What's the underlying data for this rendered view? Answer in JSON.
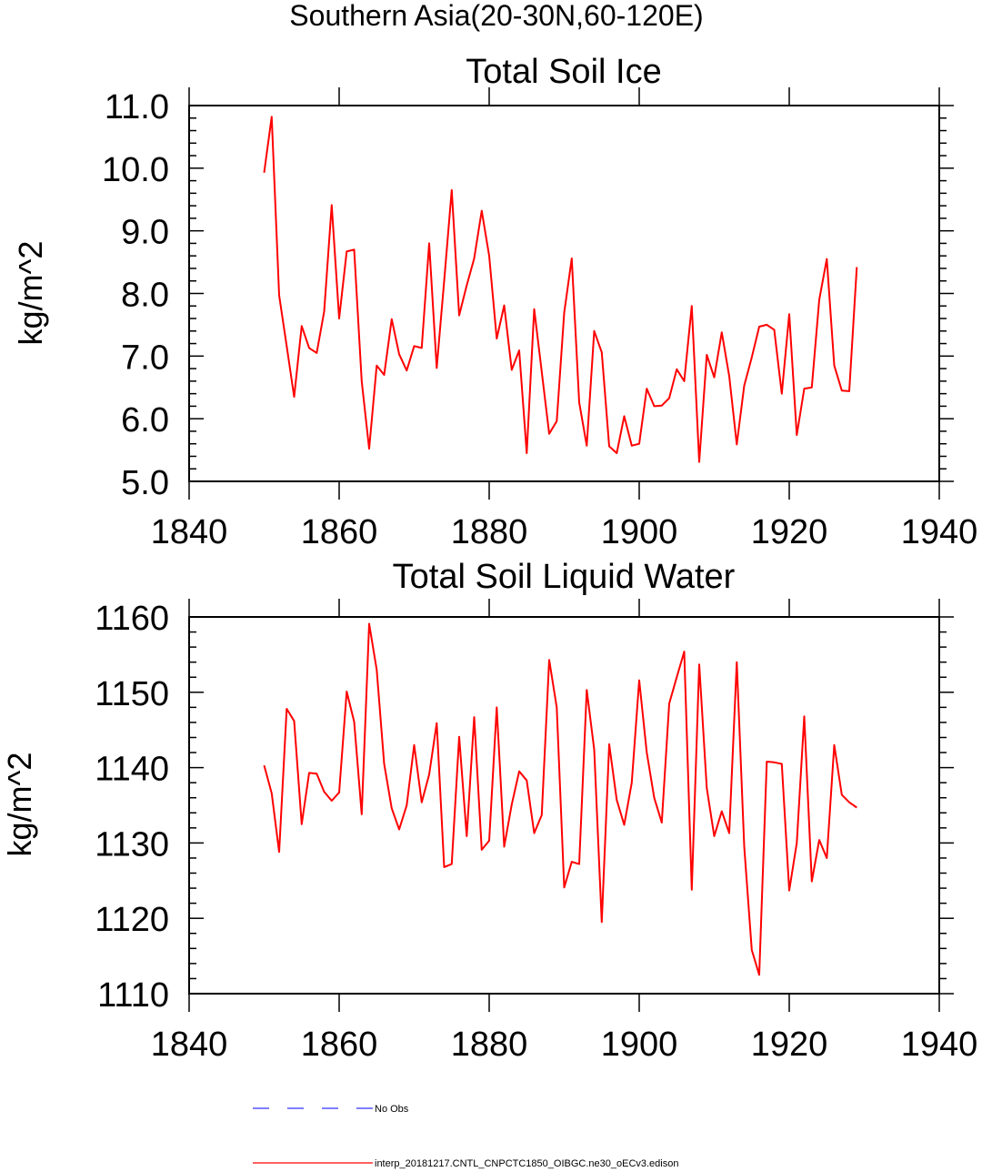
{
  "suptitle": "Southern Asia(20-30N,60-120E)",
  "chart_data": [
    {
      "type": "line",
      "title": "Total Soil Ice",
      "ylabel": "kg/m^2",
      "xlabel": "",
      "xlim": [
        1840,
        1940
      ],
      "ylim": [
        5.0,
        11.0
      ],
      "xticks": [
        "1840",
        "1860",
        "1880",
        "1900",
        "1920",
        "1940"
      ],
      "yticks": [
        "5.0",
        "6.0",
        "7.0",
        "8.0",
        "9.0",
        "10.0",
        "11.0"
      ],
      "series": [
        {
          "color": "#ff0000",
          "x": [
            1850,
            1851,
            1852,
            1853,
            1854,
            1855,
            1856,
            1857,
            1858,
            1859,
            1860,
            1861,
            1862,
            1863,
            1864,
            1865,
            1866,
            1867,
            1868,
            1869,
            1870,
            1871,
            1872,
            1873,
            1874,
            1875,
            1876,
            1877,
            1878,
            1879,
            1880,
            1881,
            1882,
            1883,
            1884,
            1885,
            1886,
            1887,
            1888,
            1889,
            1890,
            1891,
            1892,
            1893,
            1894,
            1895,
            1896,
            1897,
            1898,
            1899,
            1900,
            1901,
            1902,
            1903,
            1904,
            1905,
            1906,
            1907,
            1908,
            1909,
            1910,
            1911,
            1912,
            1913,
            1914,
            1915,
            1916,
            1917,
            1918,
            1919,
            1920,
            1921,
            1922,
            1923,
            1924,
            1925,
            1926,
            1927,
            1928,
            1929
          ],
          "y": [
            9.93,
            10.82,
            7.97,
            7.16,
            6.35,
            7.48,
            7.13,
            7.05,
            7.71,
            9.41,
            7.6,
            8.67,
            8.7,
            6.6,
            5.52,
            6.85,
            6.7,
            7.59,
            7.03,
            6.77,
            7.16,
            7.13,
            8.8,
            6.81,
            8.2,
            9.65,
            7.65,
            8.13,
            8.56,
            9.32,
            8.6,
            7.28,
            7.81,
            6.78,
            7.09,
            5.45,
            7.75,
            6.75,
            5.76,
            5.96,
            7.69,
            8.56,
            6.26,
            5.57,
            7.4,
            7.06,
            5.56,
            5.45,
            6.04,
            5.57,
            5.6,
            6.48,
            6.2,
            6.21,
            6.33,
            6.79,
            6.6,
            7.8,
            5.31,
            7.02,
            6.66,
            7.38,
            6.68,
            5.59,
            6.53,
            6.98,
            7.47,
            7.5,
            7.42,
            6.4,
            7.67,
            5.74,
            6.48,
            6.5,
            7.9,
            8.55,
            6.85,
            6.45,
            6.44,
            8.42
          ]
        }
      ]
    },
    {
      "type": "line",
      "title": "Total Soil Liquid Water",
      "ylabel": "kg/m^2",
      "xlabel": "",
      "xlim": [
        1840,
        1940
      ],
      "ylim": [
        1110,
        1160
      ],
      "xticks": [
        "1840",
        "1860",
        "1880",
        "1900",
        "1920",
        "1940"
      ],
      "yticks": [
        "1110",
        "1120",
        "1130",
        "1140",
        "1150",
        "1160"
      ],
      "series": [
        {
          "color": "#ff0000",
          "x": [
            1850,
            1851,
            1852,
            1853,
            1854,
            1855,
            1856,
            1857,
            1858,
            1859,
            1860,
            1861,
            1862,
            1863,
            1864,
            1865,
            1866,
            1867,
            1868,
            1869,
            1870,
            1871,
            1872,
            1873,
            1874,
            1875,
            1876,
            1877,
            1878,
            1879,
            1880,
            1881,
            1882,
            1883,
            1884,
            1885,
            1886,
            1887,
            1888,
            1889,
            1890,
            1891,
            1892,
            1893,
            1894,
            1895,
            1896,
            1897,
            1898,
            1899,
            1900,
            1901,
            1902,
            1903,
            1904,
            1905,
            1906,
            1907,
            1908,
            1909,
            1910,
            1911,
            1912,
            1913,
            1914,
            1915,
            1916,
            1917,
            1918,
            1919,
            1920,
            1921,
            1922,
            1923,
            1924,
            1925,
            1926,
            1927,
            1928,
            1929
          ],
          "y": [
            1140.3,
            1136.6,
            1128.8,
            1147.8,
            1146.2,
            1132.5,
            1139.3,
            1139.2,
            1136.8,
            1135.6,
            1136.7,
            1150.1,
            1146.1,
            1133.8,
            1159.1,
            1153.0,
            1140.5,
            1134.6,
            1131.8,
            1135.0,
            1143.0,
            1135.4,
            1139.1,
            1145.9,
            1126.8,
            1127.2,
            1144.1,
            1130.9,
            1146.7,
            1129.1,
            1130.3,
            1148.0,
            1129.5,
            1135.1,
            1139.5,
            1138.3,
            1131.3,
            1133.7,
            1154.3,
            1148.0,
            1124.1,
            1127.5,
            1127.2,
            1150.3,
            1142.4,
            1119.5,
            1143.1,
            1135.7,
            1132.4,
            1138.0,
            1151.6,
            1142.0,
            1136.0,
            1132.7,
            1148.5,
            1152.0,
            1155.4,
            1123.8,
            1153.7,
            1137.3,
            1130.9,
            1134.2,
            1131.3,
            1154.0,
            1129.5,
            1115.8,
            1112.5,
            1140.8,
            1140.7,
            1140.5,
            1123.7,
            1130.0,
            1146.8,
            1124.9,
            1130.4,
            1128.0,
            1143.0,
            1136.4,
            1135.4,
            1134.7
          ]
        }
      ]
    }
  ],
  "legend": {
    "items": [
      {
        "label": "No Obs",
        "color": "#3333ff",
        "style": "dashed"
      },
      {
        "label": "interp_20181217.CNTL_CNPCTC1850_OIBGC.ne30_oECv3.edison",
        "color": "#ff0000",
        "style": "solid"
      }
    ]
  }
}
